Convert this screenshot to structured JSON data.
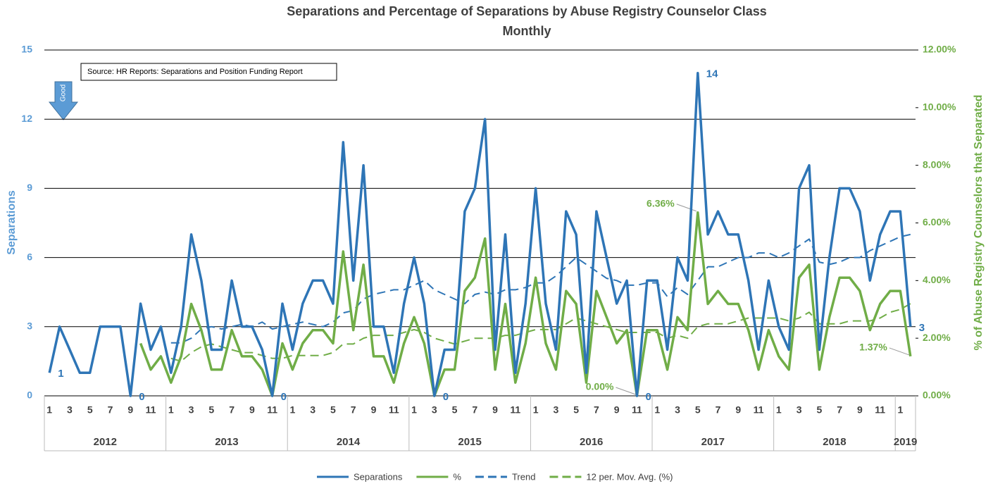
{
  "chart_data": {
    "type": "line",
    "title": "Separations and Percentage of Separations by Abuse Registry Counselor Class",
    "subtitle": "Monthly",
    "y_label": "Separations",
    "y2_label": "% of Abuse Registry Counselors that Separated",
    "annotations": {
      "source": "Source: HR Reports: Separations and Position Funding Report",
      "arrow": "Good"
    },
    "categories": [
      "1",
      null,
      "3",
      null,
      "5",
      null,
      "7",
      null,
      "9",
      null,
      "11",
      null,
      "1",
      null,
      "3",
      null,
      "5",
      null,
      "7",
      null,
      "9",
      null,
      "11",
      null,
      "1",
      null,
      "3",
      null,
      "5",
      null,
      "7",
      null,
      "9",
      null,
      "11",
      null,
      "1",
      null,
      "3",
      null,
      "5",
      null,
      "7",
      null,
      "9",
      null,
      "11",
      null,
      "1",
      null,
      "3",
      null,
      "5",
      null,
      "7",
      null,
      "9",
      null,
      "11",
      null,
      "1",
      null,
      "3",
      null,
      "5",
      null,
      "7",
      null,
      "9",
      null,
      "11",
      null,
      "1",
      null,
      "3",
      null,
      "5",
      null,
      "7",
      null,
      "9",
      null,
      "11",
      null,
      "1",
      null
    ],
    "years": [
      "2012",
      "2013",
      "2014",
      "2015",
      "2016",
      "2017",
      "2018",
      "2019"
    ],
    "ylim": [
      0,
      15
    ],
    "yticks": [
      0,
      3,
      6,
      9,
      12,
      15
    ],
    "y2lim": [
      0,
      12
    ],
    "y2ticks": [
      {
        "value": 0,
        "label": "0.00%"
      },
      {
        "value": 2,
        "label": "2.00%"
      },
      {
        "value": 4,
        "label": "4.00%"
      },
      {
        "value": 6,
        "label": "6.00%"
      },
      {
        "value": 8,
        "label": "8.00%"
      },
      {
        "value": 10,
        "label": "10.00%"
      },
      {
        "value": 12,
        "label": "12.00%"
      }
    ],
    "grid": true,
    "legend": "bottom",
    "series": [
      {
        "name": "Separations",
        "color": "#2e75b6",
        "line_style": "solid",
        "values": [
          1,
          3,
          2,
          1,
          1,
          3,
          3,
          3,
          0,
          4,
          2,
          3,
          1,
          3,
          7,
          5,
          2,
          2,
          5,
          3,
          3,
          2,
          0,
          4,
          2,
          4,
          5,
          5,
          4,
          11,
          5,
          10,
          3,
          3,
          1,
          4,
          6,
          4,
          0,
          2,
          2,
          8,
          9,
          12,
          2,
          7,
          1,
          4,
          9,
          4,
          2,
          8,
          7,
          1,
          8,
          6,
          4,
          5,
          0,
          5,
          5,
          2,
          6,
          5,
          14,
          7,
          8,
          7,
          7,
          5,
          2,
          5,
          3,
          2,
          9,
          10,
          2,
          6,
          9,
          9,
          8,
          5,
          7,
          8,
          8,
          3
        ],
        "value_labels": [
          "1",
          null,
          null,
          null,
          null,
          null,
          null,
          null,
          "0",
          null,
          null,
          null,
          null,
          null,
          null,
          null,
          null,
          null,
          null,
          null,
          null,
          null,
          "0",
          null,
          null,
          null,
          null,
          null,
          null,
          null,
          null,
          null,
          null,
          null,
          null,
          null,
          null,
          null,
          "0",
          null,
          null,
          null,
          null,
          null,
          null,
          null,
          null,
          null,
          null,
          null,
          null,
          null,
          null,
          null,
          null,
          null,
          null,
          null,
          "0",
          null,
          null,
          null,
          null,
          null,
          "14",
          null,
          null,
          null,
          null,
          null,
          null,
          null,
          null,
          null,
          null,
          null,
          null,
          null,
          null,
          null,
          null,
          null,
          null,
          null,
          null,
          "3"
        ]
      },
      {
        "name": "%",
        "color": "#70ad47",
        "line_style": "solid",
        "axis": "y2",
        "values": [
          null,
          null,
          null,
          null,
          null,
          null,
          null,
          null,
          null,
          1.82,
          0.91,
          1.37,
          0.46,
          1.37,
          3.19,
          2.28,
          0.91,
          0.91,
          2.28,
          1.37,
          1.37,
          0.91,
          0,
          1.82,
          0.91,
          1.82,
          2.28,
          2.28,
          1.82,
          5.01,
          2.28,
          4.55,
          1.37,
          1.37,
          0.46,
          1.82,
          2.73,
          1.82,
          0,
          0.91,
          0.91,
          3.64,
          4.1,
          5.46,
          0.91,
          3.19,
          0.46,
          1.82,
          4.1,
          1.82,
          0.91,
          3.64,
          3.19,
          0.46,
          3.64,
          2.73,
          1.82,
          2.28,
          0,
          2.28,
          2.28,
          0.91,
          2.73,
          2.28,
          6.36,
          3.19,
          3.64,
          3.19,
          3.19,
          2.28,
          0.91,
          2.28,
          1.37,
          0.91,
          4.1,
          4.55,
          0.91,
          2.73,
          4.1,
          4.1,
          3.64,
          2.28,
          3.19,
          3.64,
          3.64,
          1.37
        ],
        "value_labels": [
          null,
          null,
          null,
          null,
          null,
          null,
          null,
          null,
          null,
          null,
          null,
          null,
          null,
          null,
          null,
          null,
          null,
          null,
          null,
          null,
          null,
          null,
          null,
          null,
          null,
          null,
          null,
          null,
          null,
          null,
          null,
          null,
          null,
          null,
          null,
          null,
          null,
          null,
          null,
          null,
          null,
          null,
          null,
          null,
          null,
          null,
          null,
          null,
          null,
          null,
          null,
          null,
          null,
          null,
          null,
          null,
          null,
          null,
          "0.00%",
          null,
          null,
          null,
          null,
          null,
          "6.36%",
          null,
          null,
          null,
          null,
          null,
          null,
          null,
          null,
          null,
          null,
          null,
          null,
          null,
          null,
          null,
          null,
          null,
          null,
          null,
          null,
          "1.37%"
        ]
      },
      {
        "name": "Trend",
        "color": "#2e75b6",
        "line_style": "dashed",
        "values": [
          null,
          null,
          null,
          null,
          null,
          null,
          null,
          null,
          null,
          null,
          null,
          null,
          2.3,
          2.3,
          2.5,
          2.9,
          3.0,
          2.9,
          3.0,
          3.1,
          3.0,
          3.2,
          2.9,
          3.0,
          3.1,
          3.2,
          3.1,
          3.0,
          3.2,
          3.6,
          3.7,
          4.2,
          4.4,
          4.5,
          4.6,
          4.6,
          4.8,
          5.0,
          4.6,
          4.4,
          4.2,
          4.0,
          4.4,
          4.5,
          4.4,
          4.6,
          4.6,
          4.7,
          4.9,
          4.9,
          5.2,
          5.6,
          6.0,
          5.7,
          5.4,
          5.1,
          5.0,
          4.8,
          4.8,
          4.9,
          4.9,
          4.3,
          4.7,
          4.4,
          5.0,
          5.6,
          5.6,
          5.8,
          6.0,
          6.0,
          6.2,
          6.2,
          6.0,
          6.2,
          6.5,
          6.8,
          5.8,
          5.7,
          5.8,
          6.0,
          6.0,
          6.3,
          6.5,
          6.7,
          6.9,
          7.0
        ]
      },
      {
        "name": "12 per. Mov. Avg. (%)",
        "color": "#70ad47",
        "line_style": "dashed",
        "axis": "y2",
        "values": [
          null,
          null,
          null,
          null,
          null,
          null,
          null,
          null,
          null,
          null,
          null,
          null,
          1.3,
          1.2,
          1.5,
          1.7,
          1.8,
          1.7,
          1.6,
          1.5,
          1.5,
          1.4,
          1.3,
          1.3,
          1.4,
          1.4,
          1.4,
          1.4,
          1.5,
          1.8,
          1.8,
          2.0,
          2.1,
          2.1,
          2.1,
          2.2,
          2.3,
          2.2,
          2.0,
          1.9,
          1.8,
          1.9,
          2.0,
          2.0,
          2.0,
          2.1,
          2.1,
          2.2,
          2.3,
          2.3,
          2.3,
          2.5,
          2.7,
          2.6,
          2.5,
          2.4,
          2.3,
          2.2,
          2.2,
          2.2,
          2.2,
          2.0,
          2.1,
          2.0,
          2.4,
          2.5,
          2.5,
          2.5,
          2.6,
          2.7,
          2.7,
          2.7,
          2.7,
          2.6,
          2.7,
          2.9,
          2.5,
          2.5,
          2.5,
          2.6,
          2.6,
          2.6,
          2.7,
          2.9,
          3.0,
          3.2
        ]
      }
    ]
  }
}
